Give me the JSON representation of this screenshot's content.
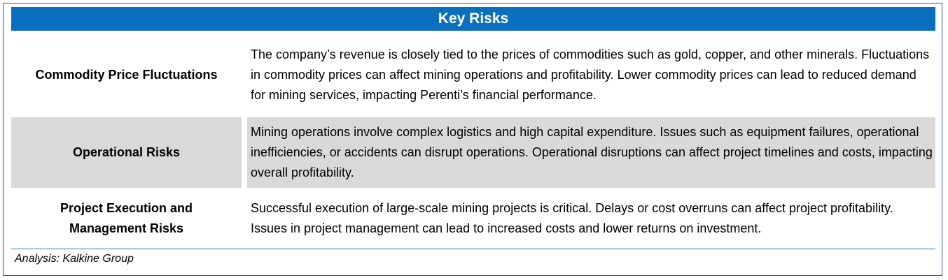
{
  "table": {
    "title": "Key Risks",
    "rows": [
      {
        "label": "Commodity Price Fluctuations",
        "description": "The company’s revenue is closely tied to the prices of commodities such as gold, copper, and other minerals. Fluctuations in commodity prices can affect mining operations and profitability. Lower commodity prices can lead to reduced demand for mining services, impacting Perenti’s financial performance."
      },
      {
        "label": "Operational Risks",
        "description": "Mining operations involve complex logistics and high capital expenditure. Issues such as equipment failures, operational inefficiencies, or accidents can disrupt operations. Operational disruptions can affect project timelines and costs, impacting overall profitability."
      },
      {
        "label": "Project Execution and Management Risks",
        "description": "Successful execution of large-scale mining projects is critical. Delays or cost overruns can affect project profitability. Issues in project management can lead to increased costs and lower returns on investment."
      }
    ],
    "source": "Analysis: Kalkine Group"
  },
  "colors": {
    "header_bg": "#0b6fc0",
    "shaded_row_bg": "#d9d9d9",
    "border": "#2f5597"
  }
}
